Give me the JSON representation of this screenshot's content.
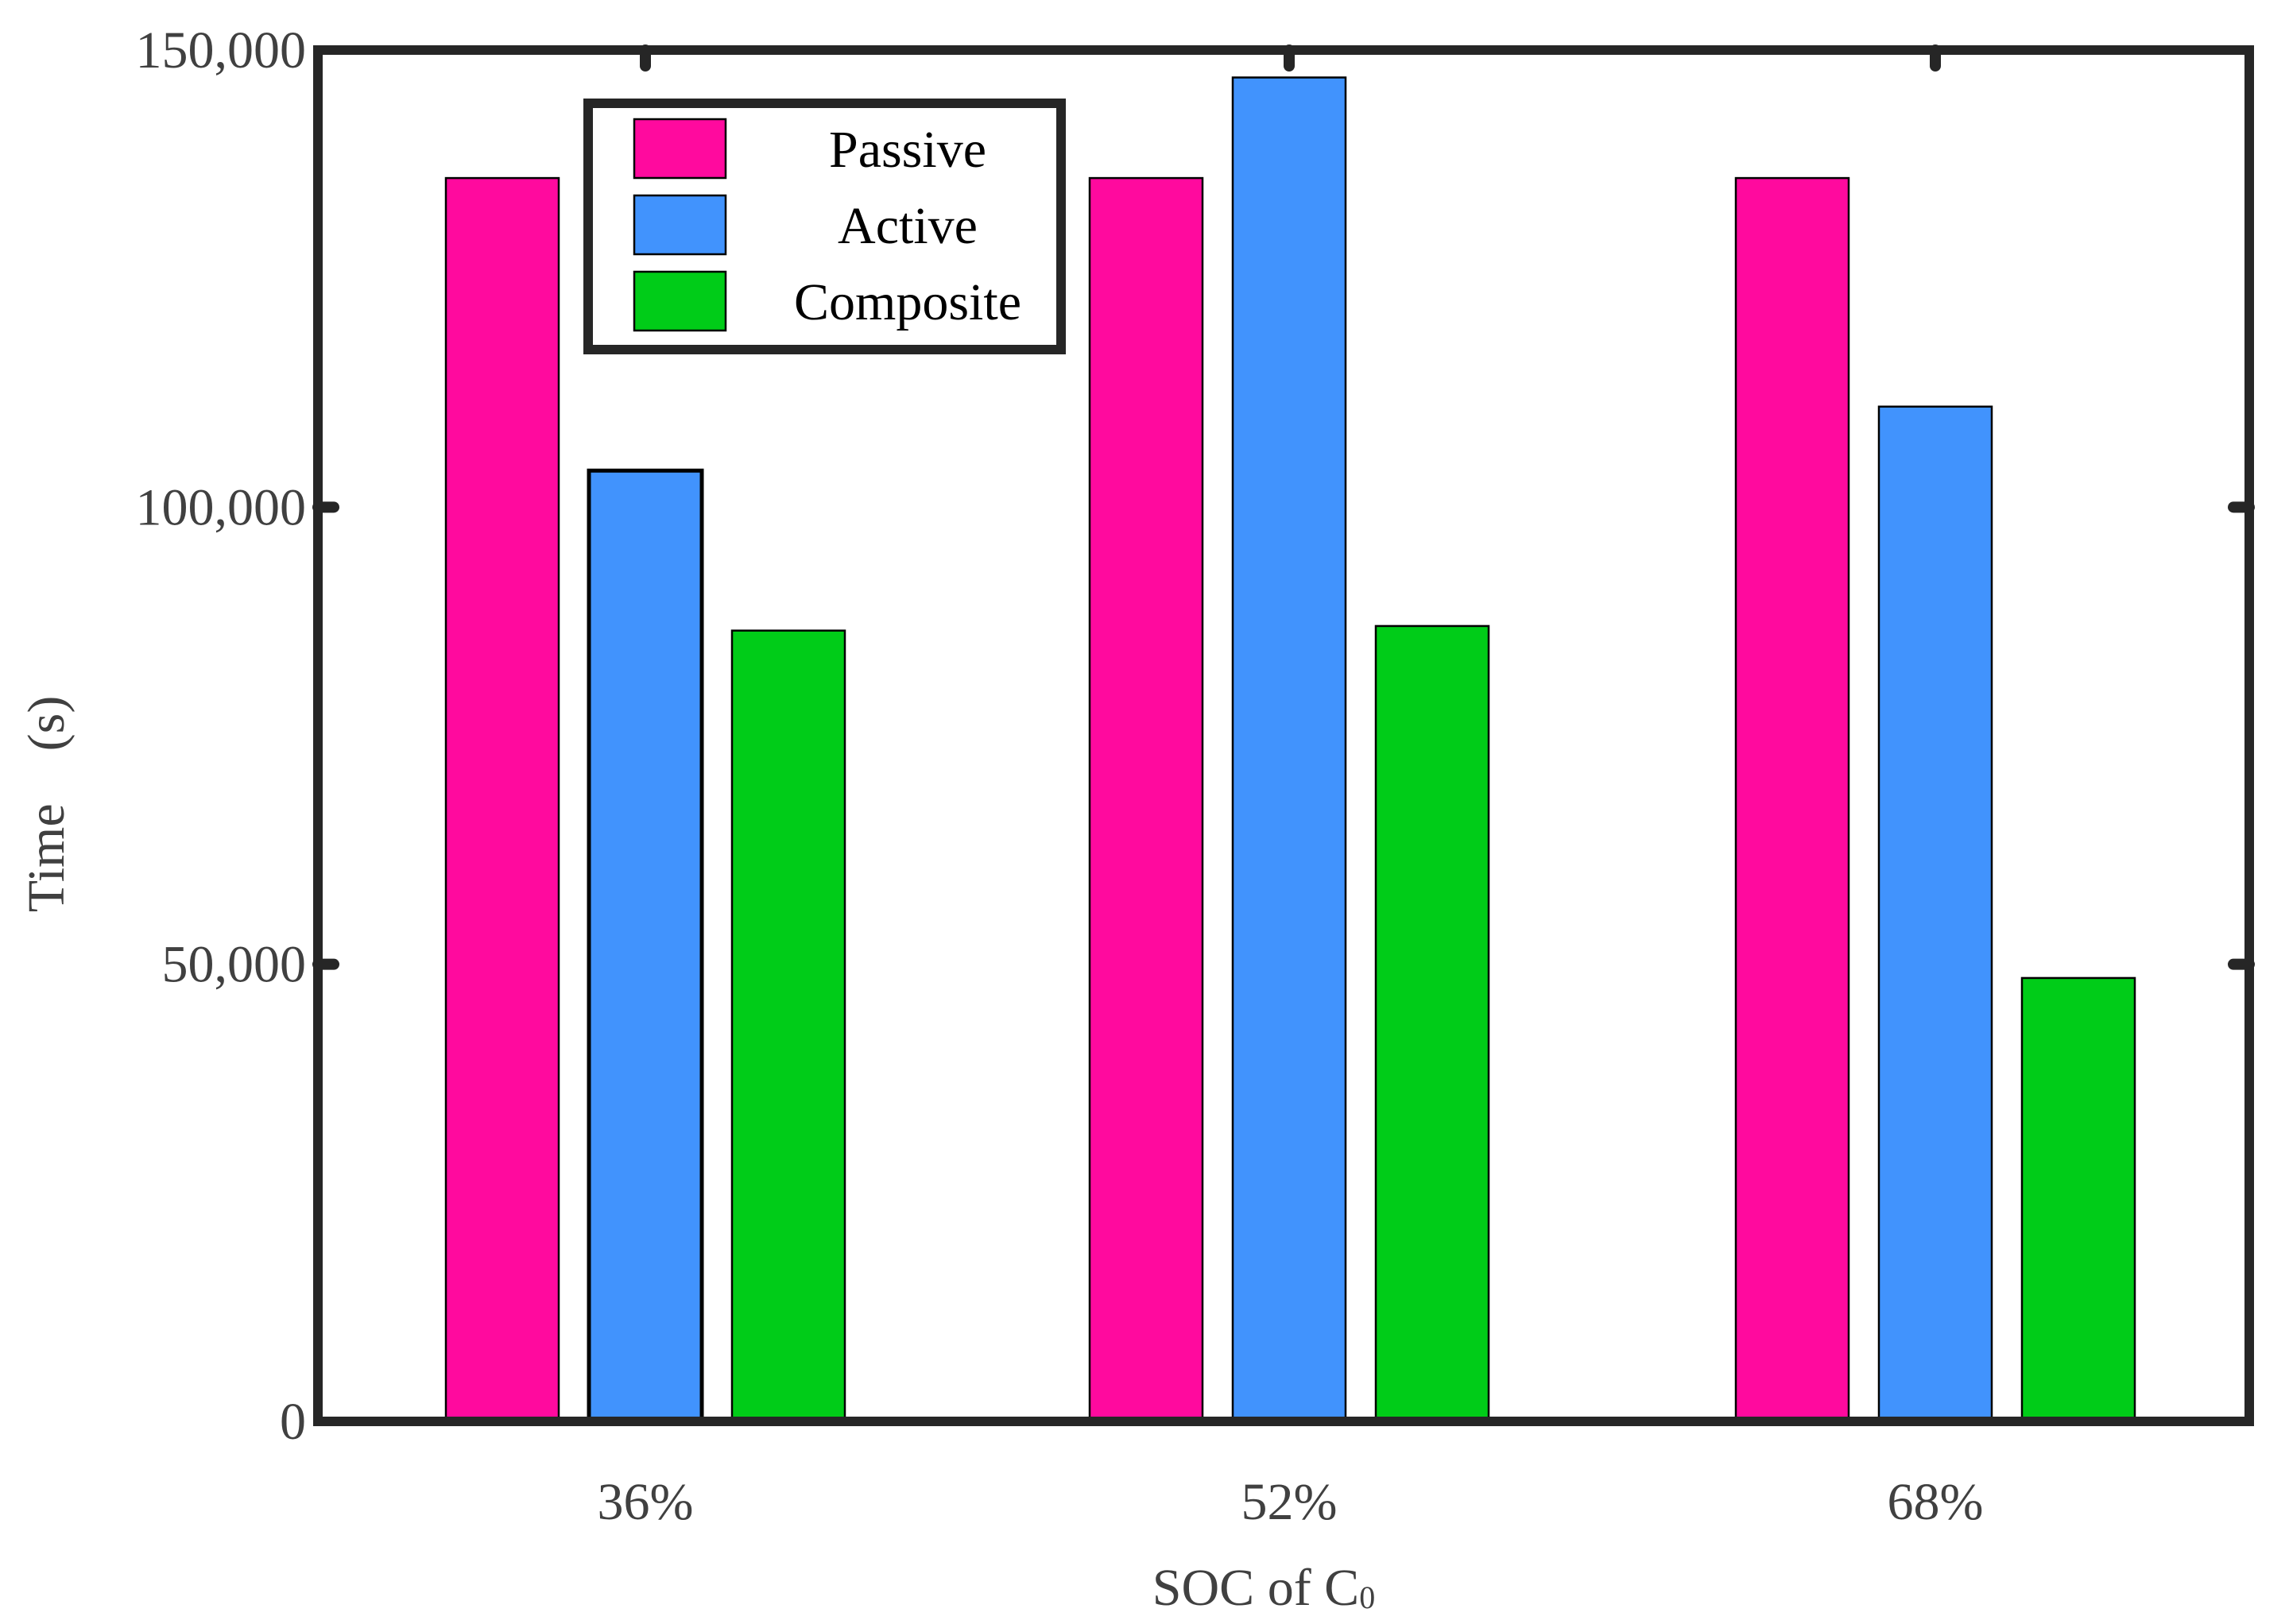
{
  "chart_data": {
    "type": "bar",
    "title": "",
    "categories": [
      "36%",
      "52%",
      "68%"
    ],
    "series": [
      {
        "name": "Passive",
        "color": "#FF0A9E",
        "values": [
          136000,
          136000,
          136000
        ]
      },
      {
        "name": "Active",
        "color": "#4193FD",
        "values": [
          104000,
          147000,
          111000
        ]
      },
      {
        "name": "Composite",
        "color": "#00CC18",
        "values": [
          86500,
          87000,
          48500
        ]
      }
    ],
    "xlabel": {
      "main": "SOC of C",
      "sub": "0"
    },
    "ylabel": "Time　(s)",
    "ylim": [
      0,
      150000
    ],
    "yticks": [
      0,
      50000,
      100000,
      150000
    ],
    "ytick_labels": [
      "0",
      "50,000",
      "100,000",
      "150,000"
    ],
    "legend_position": "top-left"
  }
}
